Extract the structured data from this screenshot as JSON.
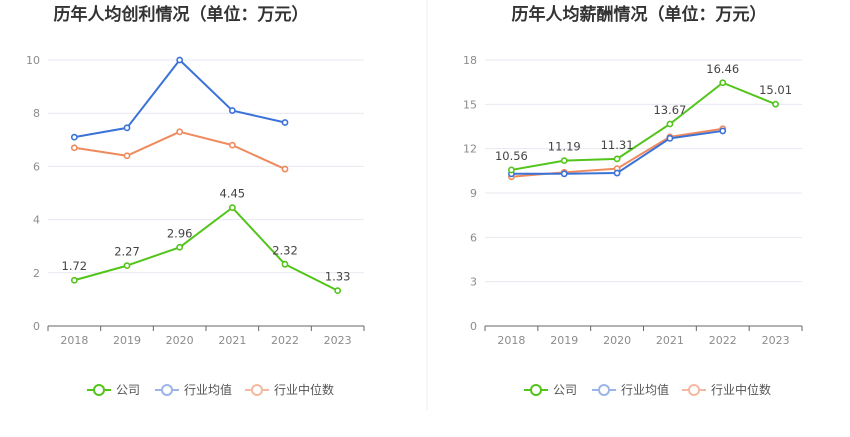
{
  "colors": {
    "company": "#52c41a",
    "industry_avg": "#3a72d8",
    "industry_median": "#ef8a5e",
    "legend_industry_avg": "#9bb5ea",
    "legend_industry_median": "#f5b8a0"
  },
  "chart_data": [
    {
      "type": "line",
      "title": "历年人均创利情况（单位：万元）",
      "categories": [
        "2018",
        "2019",
        "2020",
        "2021",
        "2022",
        "2023"
      ],
      "ylim": [
        0,
        10
      ],
      "yticks": [
        0,
        2,
        4,
        6,
        8,
        10
      ],
      "grid": true,
      "series": [
        {
          "key": "company",
          "name": "公司",
          "values": [
            1.72,
            2.27,
            2.96,
            4.45,
            2.32,
            1.33
          ],
          "labels": [
            "1.72",
            "2.27",
            "2.96",
            "4.45",
            "2.32",
            "1.33"
          ]
        },
        {
          "key": "industry_avg",
          "name": "行业均值",
          "values": [
            7.1,
            7.45,
            10.0,
            8.1,
            7.65,
            null
          ]
        },
        {
          "key": "industry_median",
          "name": "行业中位数",
          "values": [
            6.7,
            6.4,
            7.3,
            6.8,
            5.9,
            null
          ]
        }
      ]
    },
    {
      "type": "line",
      "title": "历年人均薪酬情况（单位：万元）",
      "categories": [
        "2018",
        "2019",
        "2020",
        "2021",
        "2022",
        "2023"
      ],
      "ylim": [
        0,
        18
      ],
      "yticks": [
        0,
        3,
        6,
        9,
        12,
        15,
        18
      ],
      "grid": true,
      "series": [
        {
          "key": "company",
          "name": "公司",
          "values": [
            10.56,
            11.19,
            11.31,
            13.67,
            16.46,
            15.01
          ],
          "labels": [
            "10.56",
            "11.19",
            "11.31",
            "13.67",
            "16.46",
            "15.01"
          ]
        },
        {
          "key": "industry_avg",
          "name": "行业均值",
          "values": [
            10.3,
            10.3,
            10.35,
            12.7,
            13.2,
            null
          ]
        },
        {
          "key": "industry_median",
          "name": "行业中位数",
          "values": [
            10.1,
            10.4,
            10.65,
            12.8,
            13.35,
            null
          ]
        }
      ]
    }
  ],
  "legend": [
    {
      "key": "company",
      "label": "公司"
    },
    {
      "key": "industry_avg",
      "label": "行业均值"
    },
    {
      "key": "industry_median",
      "label": "行业中位数"
    }
  ]
}
